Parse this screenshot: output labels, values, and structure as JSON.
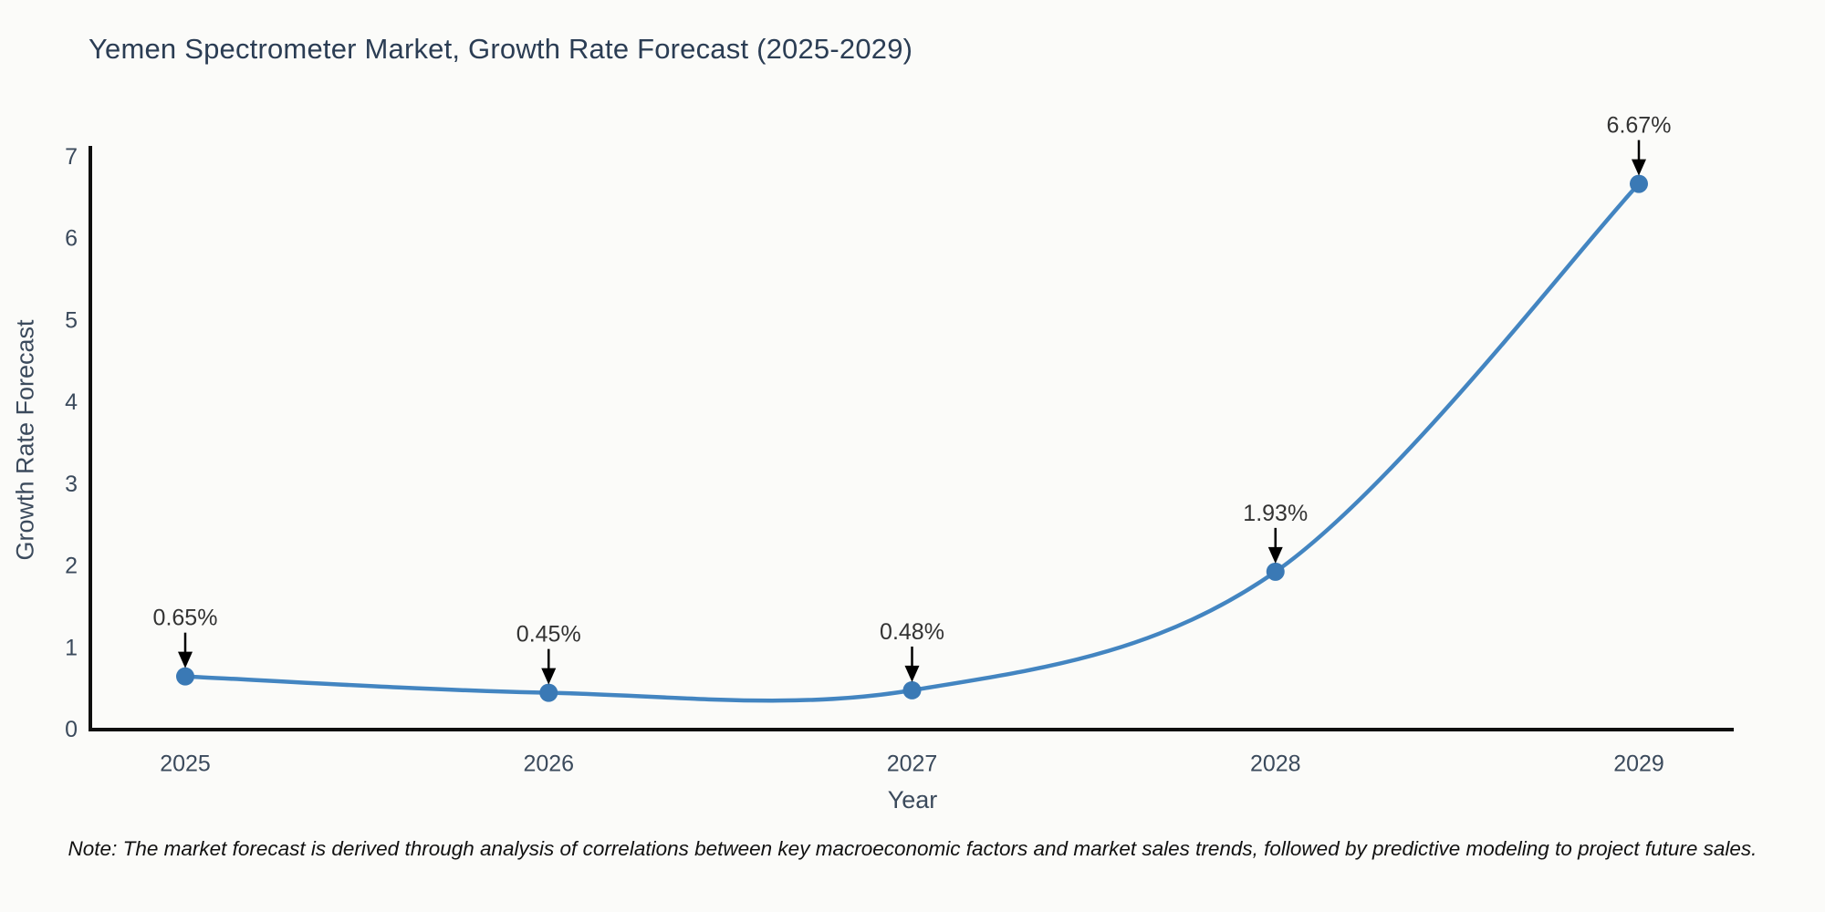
{
  "title": "Yemen Spectrometer Market, Growth Rate Forecast (2025-2029)",
  "note": "Note: The market forecast is derived through analysis of correlations between key macroeconomic factors and market sales trends, followed by predictive modeling to project future sales.",
  "chart_data": {
    "type": "line",
    "line_shape": "spline",
    "title": "Yemen Spectrometer Market, Growth Rate Forecast (2025-2029)",
    "xlabel": "Year",
    "ylabel": "Growth Rate Forecast",
    "categories": [
      "2025",
      "2026",
      "2027",
      "2028",
      "2029"
    ],
    "values": [
      0.65,
      0.45,
      0.48,
      1.93,
      6.67
    ],
    "point_labels": [
      "0.65%",
      "0.45%",
      "0.48%",
      "1.93%",
      "6.67%"
    ],
    "ylim": [
      0,
      7
    ],
    "yticks": [
      0,
      1,
      2,
      3,
      4,
      5,
      6,
      7
    ],
    "grid": false,
    "legend": "none",
    "markers": true,
    "annotations_arrows": true,
    "colors": {
      "line": "#4385c1",
      "marker": "#3a79b5",
      "axis": "#0f0f0f",
      "tick_text": "#3b4a5c",
      "title_text": "#2b3d54",
      "annotation_text": "#333333",
      "arrow": "#000000",
      "background": "#fbfbf9"
    }
  }
}
